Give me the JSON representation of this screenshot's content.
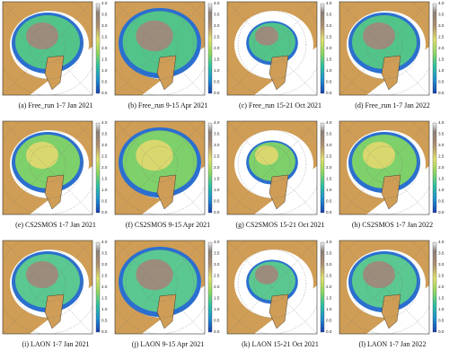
{
  "figure": {
    "colorbar": {
      "ticks": [
        "0.0",
        "0.5",
        "1.0",
        "1.5",
        "2.0",
        "2.5",
        "3.0",
        "3.5",
        "4.0"
      ]
    },
    "panels": [
      {
        "caption": "(a) Free_run 1-7 Jan 2021"
      },
      {
        "caption": "(b) Free_run 9-15 Apr 2021"
      },
      {
        "caption": "(c) Free_run 15-21 Oct 2021"
      },
      {
        "caption": "(d) Free_run 1-7 Jan 2022"
      },
      {
        "caption": "(e) CS2SMOS 1-7 Jan 2021"
      },
      {
        "caption": "(f) CS2SMOS 9-15 Apr 2021"
      },
      {
        "caption": "(g) CS2SMOS 15-21 Oct 2021"
      },
      {
        "caption": "(h) CS2SMOS 1-7 Jan 2022"
      },
      {
        "caption": "(i) LAON 1-7 Jan 2021"
      },
      {
        "caption": "(j) LAON 9-15 Apr 2021"
      },
      {
        "caption": "(k) LAON 15-21 Oct 2021"
      },
      {
        "caption": "(l) LAON 1-7 Jan 2022"
      }
    ]
  }
}
